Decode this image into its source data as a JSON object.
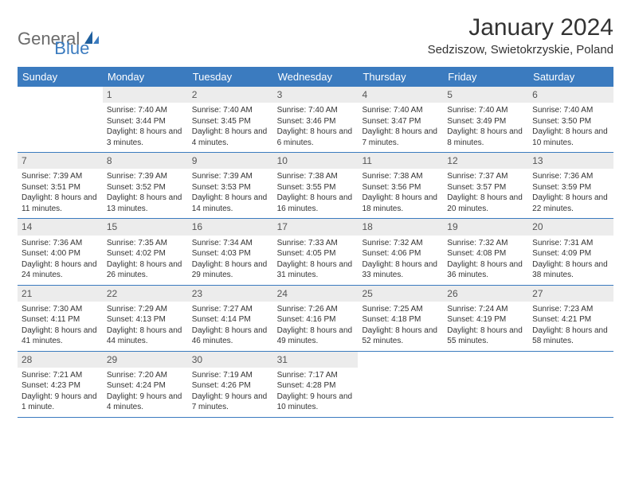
{
  "brand": {
    "part1": "General",
    "part2": "Blue"
  },
  "title": "January 2024",
  "location": "Sedziszow, Swietokrzyskie, Poland",
  "colors": {
    "accent": "#3b7bbf",
    "header_bg": "#3b7bbf",
    "header_text": "#ffffff",
    "daynum_bg": "#ececec",
    "body_text": "#333333",
    "logo_gray": "#6b6b6b"
  },
  "day_names": [
    "Sunday",
    "Monday",
    "Tuesday",
    "Wednesday",
    "Thursday",
    "Friday",
    "Saturday"
  ],
  "weeks": [
    [
      {
        "n": "",
        "lines": []
      },
      {
        "n": "1",
        "lines": [
          "Sunrise: 7:40 AM",
          "Sunset: 3:44 PM",
          "Daylight: 8 hours and 3 minutes."
        ]
      },
      {
        "n": "2",
        "lines": [
          "Sunrise: 7:40 AM",
          "Sunset: 3:45 PM",
          "Daylight: 8 hours and 4 minutes."
        ]
      },
      {
        "n": "3",
        "lines": [
          "Sunrise: 7:40 AM",
          "Sunset: 3:46 PM",
          "Daylight: 8 hours and 6 minutes."
        ]
      },
      {
        "n": "4",
        "lines": [
          "Sunrise: 7:40 AM",
          "Sunset: 3:47 PM",
          "Daylight: 8 hours and 7 minutes."
        ]
      },
      {
        "n": "5",
        "lines": [
          "Sunrise: 7:40 AM",
          "Sunset: 3:49 PM",
          "Daylight: 8 hours and 8 minutes."
        ]
      },
      {
        "n": "6",
        "lines": [
          "Sunrise: 7:40 AM",
          "Sunset: 3:50 PM",
          "Daylight: 8 hours and 10 minutes."
        ]
      }
    ],
    [
      {
        "n": "7",
        "lines": [
          "Sunrise: 7:39 AM",
          "Sunset: 3:51 PM",
          "Daylight: 8 hours and 11 minutes."
        ]
      },
      {
        "n": "8",
        "lines": [
          "Sunrise: 7:39 AM",
          "Sunset: 3:52 PM",
          "Daylight: 8 hours and 13 minutes."
        ]
      },
      {
        "n": "9",
        "lines": [
          "Sunrise: 7:39 AM",
          "Sunset: 3:53 PM",
          "Daylight: 8 hours and 14 minutes."
        ]
      },
      {
        "n": "10",
        "lines": [
          "Sunrise: 7:38 AM",
          "Sunset: 3:55 PM",
          "Daylight: 8 hours and 16 minutes."
        ]
      },
      {
        "n": "11",
        "lines": [
          "Sunrise: 7:38 AM",
          "Sunset: 3:56 PM",
          "Daylight: 8 hours and 18 minutes."
        ]
      },
      {
        "n": "12",
        "lines": [
          "Sunrise: 7:37 AM",
          "Sunset: 3:57 PM",
          "Daylight: 8 hours and 20 minutes."
        ]
      },
      {
        "n": "13",
        "lines": [
          "Sunrise: 7:36 AM",
          "Sunset: 3:59 PM",
          "Daylight: 8 hours and 22 minutes."
        ]
      }
    ],
    [
      {
        "n": "14",
        "lines": [
          "Sunrise: 7:36 AM",
          "Sunset: 4:00 PM",
          "Daylight: 8 hours and 24 minutes."
        ]
      },
      {
        "n": "15",
        "lines": [
          "Sunrise: 7:35 AM",
          "Sunset: 4:02 PM",
          "Daylight: 8 hours and 26 minutes."
        ]
      },
      {
        "n": "16",
        "lines": [
          "Sunrise: 7:34 AM",
          "Sunset: 4:03 PM",
          "Daylight: 8 hours and 29 minutes."
        ]
      },
      {
        "n": "17",
        "lines": [
          "Sunrise: 7:33 AM",
          "Sunset: 4:05 PM",
          "Daylight: 8 hours and 31 minutes."
        ]
      },
      {
        "n": "18",
        "lines": [
          "Sunrise: 7:32 AM",
          "Sunset: 4:06 PM",
          "Daylight: 8 hours and 33 minutes."
        ]
      },
      {
        "n": "19",
        "lines": [
          "Sunrise: 7:32 AM",
          "Sunset: 4:08 PM",
          "Daylight: 8 hours and 36 minutes."
        ]
      },
      {
        "n": "20",
        "lines": [
          "Sunrise: 7:31 AM",
          "Sunset: 4:09 PM",
          "Daylight: 8 hours and 38 minutes."
        ]
      }
    ],
    [
      {
        "n": "21",
        "lines": [
          "Sunrise: 7:30 AM",
          "Sunset: 4:11 PM",
          "Daylight: 8 hours and 41 minutes."
        ]
      },
      {
        "n": "22",
        "lines": [
          "Sunrise: 7:29 AM",
          "Sunset: 4:13 PM",
          "Daylight: 8 hours and 44 minutes."
        ]
      },
      {
        "n": "23",
        "lines": [
          "Sunrise: 7:27 AM",
          "Sunset: 4:14 PM",
          "Daylight: 8 hours and 46 minutes."
        ]
      },
      {
        "n": "24",
        "lines": [
          "Sunrise: 7:26 AM",
          "Sunset: 4:16 PM",
          "Daylight: 8 hours and 49 minutes."
        ]
      },
      {
        "n": "25",
        "lines": [
          "Sunrise: 7:25 AM",
          "Sunset: 4:18 PM",
          "Daylight: 8 hours and 52 minutes."
        ]
      },
      {
        "n": "26",
        "lines": [
          "Sunrise: 7:24 AM",
          "Sunset: 4:19 PM",
          "Daylight: 8 hours and 55 minutes."
        ]
      },
      {
        "n": "27",
        "lines": [
          "Sunrise: 7:23 AM",
          "Sunset: 4:21 PM",
          "Daylight: 8 hours and 58 minutes."
        ]
      }
    ],
    [
      {
        "n": "28",
        "lines": [
          "Sunrise: 7:21 AM",
          "Sunset: 4:23 PM",
          "Daylight: 9 hours and 1 minute."
        ]
      },
      {
        "n": "29",
        "lines": [
          "Sunrise: 7:20 AM",
          "Sunset: 4:24 PM",
          "Daylight: 9 hours and 4 minutes."
        ]
      },
      {
        "n": "30",
        "lines": [
          "Sunrise: 7:19 AM",
          "Sunset: 4:26 PM",
          "Daylight: 9 hours and 7 minutes."
        ]
      },
      {
        "n": "31",
        "lines": [
          "Sunrise: 7:17 AM",
          "Sunset: 4:28 PM",
          "Daylight: 9 hours and 10 minutes."
        ]
      },
      {
        "n": "",
        "lines": []
      },
      {
        "n": "",
        "lines": []
      },
      {
        "n": "",
        "lines": []
      }
    ]
  ]
}
